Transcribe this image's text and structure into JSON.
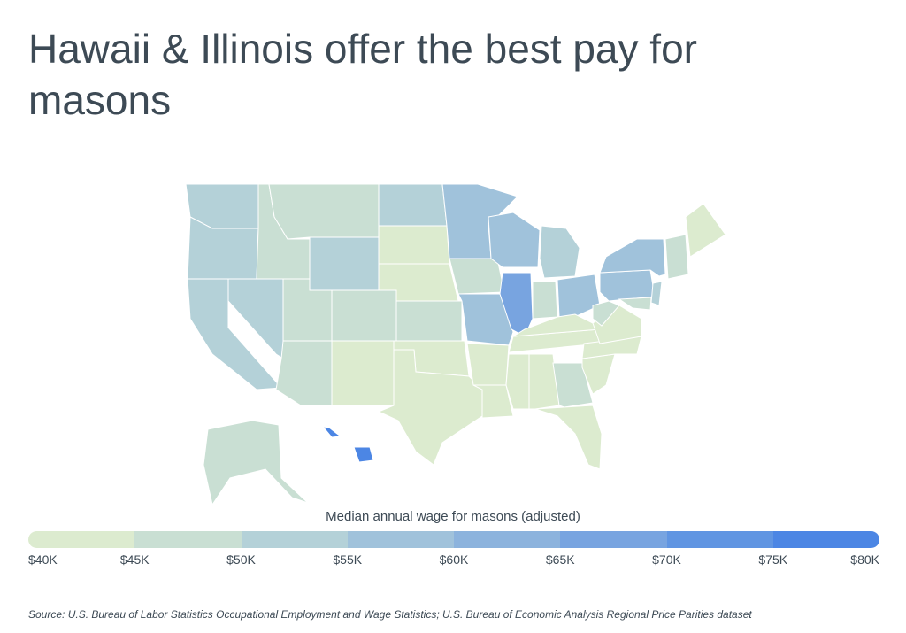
{
  "title": "Hawaii & Illinois offer the best pay for masons",
  "legend": {
    "title": "Median annual wage for masons (adjusted)",
    "ticks": [
      "$40K",
      "$45K",
      "$50K",
      "$55K",
      "$60K",
      "$65K",
      "$70K",
      "$75K",
      "$80K"
    ],
    "colors": [
      "#dcebcf",
      "#c9dfd3",
      "#b4d1d8",
      "#a0c2db",
      "#8cb3dd",
      "#78a4e0",
      "#6095e2",
      "#4c86e4"
    ]
  },
  "source": "Source:  U.S. Bureau of Labor Statistics Occupational Employment and Wage Statistics; U.S. Bureau of Economic Analysis Regional Price Parities dataset",
  "map_regions": {
    "illinois": "#78a4e0",
    "hawaii": "#4c86e4",
    "high": "#8cb3dd",
    "mid_high": "#a0c2db",
    "mid": "#b4d1d8",
    "mid_low": "#c9dfd3",
    "low": "#dcebcf"
  }
}
